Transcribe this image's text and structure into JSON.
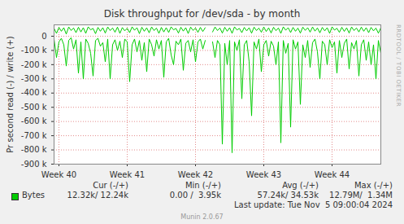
{
  "chart_data": {
    "type": "line",
    "title": "Disk throughput for /dev/sda - by month",
    "y_label": "Pr second read (-) / write (+)",
    "x": [
      0,
      1,
      2,
      3,
      4,
      5,
      6,
      7,
      8,
      9,
      10,
      11,
      12,
      13,
      14,
      15,
      16,
      17,
      18,
      19,
      20,
      21,
      22,
      23,
      24,
      25,
      26,
      27,
      28,
      29,
      30,
      31,
      32,
      33,
      34,
      35,
      36,
      37,
      38,
      39,
      40,
      41,
      42,
      43,
      44,
      45,
      46,
      47,
      48,
      49,
      50,
      51,
      52,
      53,
      54,
      55,
      56,
      57,
      58,
      59,
      60,
      61,
      62,
      63,
      64,
      65,
      66,
      67,
      68,
      69,
      70,
      71,
      72,
      73,
      74,
      75,
      76,
      77,
      78,
      79,
      80,
      81,
      82,
      83,
      84,
      85,
      86,
      87,
      88,
      89,
      90,
      91,
      92,
      93,
      94,
      95,
      96,
      97,
      98,
      99,
      100,
      101,
      102,
      103,
      104,
      105,
      106,
      107,
      108,
      109,
      110,
      111,
      112,
      113,
      114,
      115,
      116,
      117,
      118,
      119,
      120,
      121,
      122,
      123,
      124,
      125,
      126,
      127,
      128,
      129,
      130,
      131,
      132,
      133,
      134
    ],
    "series": [
      {
        "name": "Bytes",
        "color": "#00cc00",
        "write": [
          55000,
          20000,
          62000,
          35000,
          60000,
          15000,
          65000,
          40000,
          58000,
          25000,
          63000,
          30000,
          60000,
          20000,
          66000,
          45000,
          55000,
          18000,
          62000,
          35000,
          60000,
          22000,
          65000,
          40000,
          58000,
          28000,
          64000,
          20000,
          61000,
          38000,
          56000,
          25000,
          66000,
          42000,
          60000,
          18000,
          63000,
          35000,
          59000,
          24000,
          65000,
          40000,
          57000,
          20000,
          62000,
          30000,
          60000,
          26000,
          66000,
          45000,
          55000,
          22000,
          63000,
          36000,
          60000,
          19000,
          64000,
          41000,
          58000,
          27000,
          62000,
          33000,
          60000,
          null,
          null,
          30000,
          65000,
          40000,
          58000,
          22000,
          63000,
          35000,
          60000,
          20000,
          66000,
          44000,
          55000,
          25000,
          62000,
          38000,
          60000,
          21000,
          64000,
          40000,
          57000,
          28000,
          65000,
          33000,
          59000,
          23000,
          63000,
          39000,
          58000,
          20000,
          66000,
          42000,
          60000,
          26000,
          62000,
          35000,
          57000,
          22000,
          64000,
          41000,
          60000,
          29000,
          65000,
          36000,
          58000,
          24000,
          62000,
          38000,
          60000,
          20000,
          66000,
          43000,
          56000,
          27000,
          63000,
          34000,
          59000,
          22000,
          65000,
          40000,
          58000,
          30000,
          64000,
          35000,
          60000,
          25000,
          62000,
          38000,
          57000,
          21000,
          60000
        ],
        "read": [
          -20000,
          -150000,
          -40000,
          -15000,
          -60000,
          -210000,
          -30000,
          -10000,
          -90000,
          -25000,
          -260000,
          -40000,
          -300000,
          -20000,
          -50000,
          -120000,
          -280000,
          -30000,
          -15000,
          -70000,
          -45000,
          -180000,
          -20000,
          -300000,
          -60000,
          -25000,
          -100000,
          -35000,
          -150000,
          -20000,
          -40000,
          -320000,
          -60000,
          -20000,
          -110000,
          -30000,
          -170000,
          -45000,
          -250000,
          -20000,
          -60000,
          -140000,
          -25000,
          -90000,
          -30000,
          -290000,
          -40000,
          -15000,
          -130000,
          -200000,
          -35000,
          -60000,
          -20000,
          -240000,
          -50000,
          -30000,
          -110000,
          -25000,
          -180000,
          -40000,
          -20000,
          -90000,
          -30000,
          null,
          null,
          -40000,
          -150000,
          -30000,
          -60000,
          -760000,
          -50000,
          -200000,
          -30000,
          -820000,
          -40000,
          -100000,
          -25000,
          -440000,
          -60000,
          -30000,
          -180000,
          -560000,
          -40000,
          -90000,
          -20000,
          -250000,
          -60000,
          -30000,
          -140000,
          -35000,
          -70000,
          -200000,
          -40000,
          -750000,
          -30000,
          -120000,
          -50000,
          -640000,
          -25000,
          -90000,
          -40000,
          -480000,
          -60000,
          -150000,
          -30000,
          -220000,
          -45000,
          -20000,
          -110000,
          -300000,
          -35000,
          -60000,
          -200000,
          -25000,
          -80000,
          -40000,
          -260000,
          -30000,
          -150000,
          -50000,
          -20000,
          -230000,
          -45000,
          -90000,
          -30000,
          -280000,
          -60000,
          -25000,
          -170000,
          -40000,
          -200000,
          -60000,
          -300000,
          -30000,
          -120000
        ]
      }
    ],
    "xlim": [
      0,
      134
    ],
    "xticks": [
      {
        "value": 2,
        "label": "Week 40"
      },
      {
        "value": 30,
        "label": "Week 41"
      },
      {
        "value": 58,
        "label": "Week 42"
      },
      {
        "value": 86,
        "label": "Week 43"
      },
      {
        "value": 114,
        "label": "Week 44"
      }
    ],
    "ylim": [
      -900000,
      80000
    ],
    "yticks": [
      0,
      {
        "value": -100000,
        "label": "-100 k"
      },
      {
        "value": -200000,
        "label": "-200 k"
      },
      {
        "value": -300000,
        "label": "-300 k"
      },
      {
        "value": -400000,
        "label": "-400 k"
      },
      {
        "value": -500000,
        "label": "-500 k"
      },
      {
        "value": -600000,
        "label": "-600 k"
      },
      {
        "value": -700000,
        "label": "-700 k"
      },
      {
        "value": -800000,
        "label": "-800 k"
      },
      {
        "value": -900000,
        "label": "-900 k"
      }
    ],
    "grid": true,
    "stats": {
      "columns": [
        "Cur (-/+)",
        "Min (-/+)",
        "Avg (-/+)",
        "Max (-/+)"
      ],
      "values": [
        "12.32k/ 12.24k",
        "0.00 /  3.95k",
        "57.24k/ 34.53k",
        "12.79M/  1.34M"
      ]
    },
    "last_update": "Last update: Tue Nov  5 09:00:04 2024",
    "credit": "Munin 2.0.67",
    "watermark": "RRDTOOL / TOBI OETIKER"
  }
}
